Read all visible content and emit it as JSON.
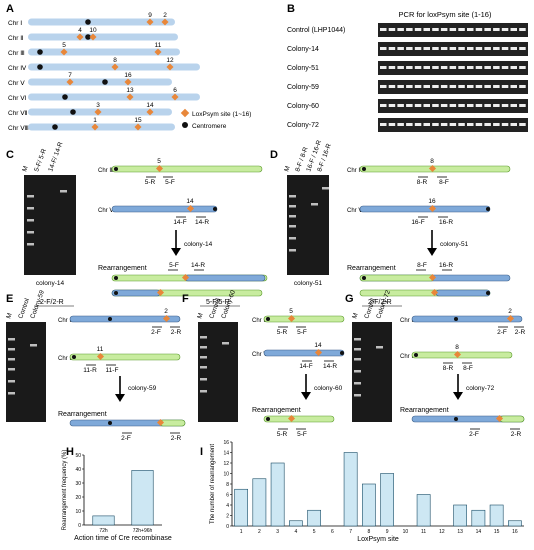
{
  "panels": {
    "A": {
      "label": "A",
      "chromosomes": [
        "Chr Ⅰ",
        "Chr Ⅱ",
        "Chr Ⅲ",
        "Chr Ⅳ",
        "Chr Ⅴ",
        "Chr Ⅵ",
        "Chr Ⅶ",
        "Chr Ⅷ"
      ],
      "sites": [
        {
          "n": "9",
          "chr": 0
        },
        {
          "n": "2",
          "chr": 0
        },
        {
          "n": "4",
          "chr": 1
        },
        {
          "n": "10",
          "chr": 1
        },
        {
          "n": "5",
          "chr": 2
        },
        {
          "n": "11",
          "chr": 2
        },
        {
          "n": "8",
          "chr": 3
        },
        {
          "n": "12",
          "chr": 3
        },
        {
          "n": "7",
          "chr": 4
        },
        {
          "n": "16",
          "chr": 4
        },
        {
          "n": "13",
          "chr": 5
        },
        {
          "n": "6",
          "chr": 5
        },
        {
          "n": "3",
          "chr": 6
        },
        {
          "n": "14",
          "chr": 6
        },
        {
          "n": "1",
          "chr": 7
        },
        {
          "n": "15",
          "chr": 7
        }
      ],
      "legend_site": "LoxPsym site (1~16)",
      "legend_centromere": "Centromere",
      "colors": {
        "chromosome": "#b9d3ec",
        "site": "#e8873a",
        "centromere": "#111111"
      }
    },
    "B": {
      "label": "B",
      "title": "PCR for loxPsym site (1-16)",
      "rows": [
        "Control (LHP1044)",
        "Colony-14",
        "Colony-51",
        "Colony-59",
        "Colony-60",
        "Colony-72"
      ]
    },
    "C": {
      "label": "C",
      "lanes": [
        "M",
        "5-F/ 5-R",
        "14-F/ 14-R"
      ],
      "gel_caption": "colony-14",
      "top_chr": "Chr Ⅲ",
      "top_site": "5",
      "top_primers": [
        "5-R",
        "5-F"
      ],
      "bottom_chr": "Chr Ⅶ",
      "bottom_site": "14",
      "bottom_primers": [
        "14-F",
        "14-R"
      ],
      "colony": "colony-14",
      "rearrangement": "Rearrangement",
      "result_primers": [
        "5-F",
        "14-R"
      ]
    },
    "D": {
      "label": "D",
      "lanes": [
        "M",
        "8-F / 8-R",
        "16-F / 16-R",
        "8-F / 16-R"
      ],
      "gel_caption": "colony-51",
      "top_chr": "Chr Ⅳ",
      "top_site": "8",
      "top_primers": [
        "8-R",
        "8-F"
      ],
      "bottom_chr": "Chr Ⅴ",
      "bottom_site": "16",
      "bottom_primers": [
        "16-F",
        "16-R"
      ],
      "colony": "colony-51",
      "rearrangement": "Rearrangement",
      "result_primers": [
        "8-F",
        "16-R"
      ]
    },
    "E": {
      "label": "E",
      "primer_title": "2-F/2-R",
      "lanes": [
        "M",
        "Control",
        "Colony-59"
      ],
      "top_chr": "Chr Ⅰ",
      "top_site": "2",
      "top_primers": [
        "2-F",
        "2-R"
      ],
      "bottom_chr": "Chr Ⅲ",
      "bottom_site": "11",
      "bottom_primers": [
        "11-R",
        "11-F"
      ],
      "colony": "colony-59",
      "rearrangement": "Rearrangement",
      "result_primers": [
        "2-F",
        "2-R"
      ]
    },
    "F": {
      "label": "F",
      "primer_title": "5-F/5-R",
      "lanes": [
        "M",
        "Control",
        "Colony-60"
      ],
      "top_chr": "Chr Ⅲ",
      "top_site": "5",
      "top_primers": [
        "5-R",
        "5-F"
      ],
      "bottom_chr": "Chr Ⅶ",
      "bottom_site": "14",
      "bottom_primers": [
        "14-F",
        "14-R"
      ],
      "colony": "colony-60",
      "rearrangement": "Rearrangement",
      "result_primers": [
        "5-R",
        "5-F"
      ]
    },
    "G": {
      "label": "G",
      "primer_title": "2-F/2-R",
      "lanes": [
        "M",
        "Control",
        "Colony-72"
      ],
      "top_chr": "Chr Ⅰ",
      "top_site": "2",
      "top_primers": [
        "2-F",
        "2-R"
      ],
      "bottom_chr": "Chr Ⅳ",
      "bottom_site": "8",
      "bottom_primers": [
        "8-R",
        "8-F"
      ],
      "colony": "colony-72",
      "rearrangement": "Rearrangement",
      "result_primers": [
        "2-F",
        "2-R"
      ]
    }
  },
  "chart_data": [
    {
      "panel": "H",
      "type": "bar",
      "categories": [
        "72h",
        "72h+96h"
      ],
      "values": [
        6.5,
        39
      ],
      "xlabel": "Action time of Cre recombinase",
      "ylabel": "Rearrangement frequency (%)",
      "ylim": [
        0,
        50
      ],
      "yticks": [
        0,
        10,
        20,
        30,
        40,
        50
      ],
      "bar_color": "#cde7f3"
    },
    {
      "panel": "I",
      "type": "bar",
      "categories": [
        "1",
        "2",
        "3",
        "4",
        "5",
        "6",
        "7",
        "8",
        "9",
        "10",
        "11",
        "12",
        "13",
        "14",
        "15",
        "16"
      ],
      "values": [
        7,
        9,
        12,
        1,
        3,
        0,
        14,
        8,
        10,
        0,
        6,
        0,
        4,
        3,
        4,
        1
      ],
      "xlabel": "LoxPsym site",
      "ylabel": "The number of rearrangement",
      "ylim": [
        0,
        16
      ],
      "yticks": [
        0,
        2,
        4,
        6,
        8,
        10,
        12,
        14,
        16
      ],
      "bar_color": "#cde7f3"
    }
  ]
}
